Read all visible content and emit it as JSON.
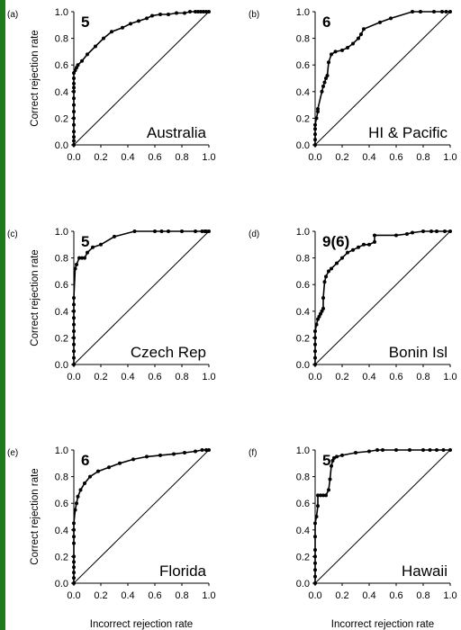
{
  "figure": {
    "x_axis_label": "Incorrect rejection rate",
    "y_axis_label": "Correct rejection rate",
    "colors": {
      "accent_bar": "#1f7a1f",
      "line": "#000000",
      "diagonal": "#000000"
    }
  },
  "chart_data": [
    {
      "type": "line",
      "panel_label": "(a)",
      "corner_number": "5",
      "region_label": "Australia",
      "xlim": [
        0,
        1
      ],
      "ylim": [
        0,
        1
      ],
      "x_ticks": [
        "0.0",
        "0.2",
        "0.4",
        "0.6",
        "0.8",
        "1.0"
      ],
      "y_ticks": [
        "0.0",
        "0.2",
        "0.4",
        "0.6",
        "0.8",
        "1.0"
      ],
      "x": [
        0,
        0,
        0,
        0,
        0,
        0,
        0,
        0,
        0,
        0,
        0,
        0,
        0,
        0,
        0.01,
        0.02,
        0.03,
        0.06,
        0.1,
        0.16,
        0.22,
        0.28,
        0.36,
        0.42,
        0.48,
        0.54,
        0.58,
        0.64,
        0.7,
        0.76,
        0.82,
        0.86,
        0.9,
        0.92,
        0.94,
        0.96,
        0.98,
        1.0
      ],
      "y": [
        0,
        0.03,
        0.06,
        0.1,
        0.15,
        0.2,
        0.25,
        0.3,
        0.35,
        0.4,
        0.43,
        0.46,
        0.5,
        0.54,
        0.56,
        0.58,
        0.6,
        0.63,
        0.68,
        0.74,
        0.8,
        0.85,
        0.88,
        0.91,
        0.93,
        0.95,
        0.97,
        0.98,
        0.98,
        0.99,
        0.99,
        1.0,
        1.0,
        1.0,
        1.0,
        1.0,
        1.0,
        1.0
      ]
    },
    {
      "type": "line",
      "panel_label": "(b)",
      "corner_number": "6",
      "region_label": "HI & Pacific",
      "xlim": [
        0,
        1
      ],
      "ylim": [
        0,
        1
      ],
      "x_ticks": [
        "0.0",
        "0.2",
        "0.4",
        "0.6",
        "0.8",
        "1.0"
      ],
      "y_ticks": [
        "0.0",
        "0.2",
        "0.4",
        "0.6",
        "0.8",
        "1.0"
      ],
      "x": [
        0,
        0,
        0,
        0,
        0,
        0.01,
        0.02,
        0.02,
        0.05,
        0.06,
        0.07,
        0.08,
        0.09,
        0.1,
        0.12,
        0.15,
        0.2,
        0.24,
        0.28,
        0.32,
        0.34,
        0.36,
        0.48,
        0.56,
        0.72,
        0.78,
        0.88,
        0.94,
        0.97,
        1.0
      ],
      "y": [
        0,
        0.04,
        0.08,
        0.12,
        0.15,
        0.2,
        0.25,
        0.27,
        0.4,
        0.44,
        0.47,
        0.5,
        0.52,
        0.62,
        0.68,
        0.7,
        0.71,
        0.73,
        0.76,
        0.8,
        0.83,
        0.87,
        0.92,
        0.95,
        1.0,
        1.0,
        1.0,
        1.0,
        1.0,
        1.0
      ]
    },
    {
      "type": "line",
      "panel_label": "(c)",
      "corner_number": "5",
      "region_label": "Czech Rep",
      "xlim": [
        0,
        1
      ],
      "ylim": [
        0,
        1
      ],
      "x_ticks": [
        "0.0",
        "0.2",
        "0.4",
        "0.6",
        "0.8",
        "1.0"
      ],
      "y_ticks": [
        "0.0",
        "0.2",
        "0.4",
        "0.6",
        "0.8",
        "1.0"
      ],
      "x": [
        0,
        0,
        0,
        0,
        0,
        0,
        0,
        0,
        0,
        0,
        0,
        0.01,
        0.02,
        0.04,
        0.06,
        0.08,
        0.1,
        0.14,
        0.2,
        0.3,
        0.45,
        0.6,
        0.65,
        0.7,
        0.8,
        0.9,
        0.95,
        0.97,
        0.98,
        1.0
      ],
      "y": [
        0,
        0.05,
        0.1,
        0.15,
        0.2,
        0.25,
        0.3,
        0.35,
        0.4,
        0.45,
        0.5,
        0.72,
        0.75,
        0.8,
        0.8,
        0.8,
        0.84,
        0.88,
        0.9,
        0.96,
        1.0,
        1.0,
        1.0,
        1.0,
        1.0,
        1.0,
        1.0,
        1.0,
        1.0,
        1.0
      ]
    },
    {
      "type": "line",
      "panel_label": "(d)",
      "corner_number": "9(6)",
      "region_label": "Bonin Isl",
      "xlim": [
        0,
        1
      ],
      "ylim": [
        0,
        1
      ],
      "x_ticks": [
        "0.0",
        "0.2",
        "0.4",
        "0.6",
        "0.8",
        "1.0"
      ],
      "y_ticks": [
        "0.0",
        "0.2",
        "0.4",
        "0.6",
        "0.8",
        "1.0"
      ],
      "x": [
        0,
        0,
        0,
        0,
        0,
        0,
        0.01,
        0.02,
        0.03,
        0.04,
        0.05,
        0.06,
        0.06,
        0.07,
        0.08,
        0.1,
        0.12,
        0.16,
        0.2,
        0.24,
        0.28,
        0.32,
        0.36,
        0.4,
        0.44,
        0.44,
        0.6,
        0.68,
        0.72,
        0.8,
        0.86,
        0.9,
        0.96,
        1.0
      ],
      "y": [
        0,
        0.05,
        0.1,
        0.15,
        0.2,
        0.25,
        0.3,
        0.34,
        0.36,
        0.38,
        0.4,
        0.42,
        0.5,
        0.62,
        0.66,
        0.7,
        0.72,
        0.76,
        0.8,
        0.84,
        0.86,
        0.88,
        0.9,
        0.9,
        0.92,
        0.97,
        0.97,
        0.98,
        0.99,
        1.0,
        1.0,
        1.0,
        1.0,
        1.0
      ]
    },
    {
      "type": "line",
      "panel_label": "(e)",
      "corner_number": "6",
      "region_label": "Florida",
      "xlim": [
        0,
        1
      ],
      "ylim": [
        0,
        1
      ],
      "x_ticks": [
        "0.0",
        "0.2",
        "0.4",
        "0.6",
        "0.8",
        "1.0"
      ],
      "y_ticks": [
        "0.0",
        "0.2",
        "0.4",
        "0.6",
        "0.8",
        "1.0"
      ],
      "x": [
        0,
        0,
        0,
        0,
        0,
        0,
        0,
        0,
        0,
        0,
        0.01,
        0.02,
        0.03,
        0.05,
        0.08,
        0.12,
        0.18,
        0.26,
        0.34,
        0.44,
        0.54,
        0.64,
        0.74,
        0.82,
        0.9,
        0.95,
        0.98,
        1.0
      ],
      "y": [
        0,
        0.04,
        0.08,
        0.12,
        0.16,
        0.2,
        0.3,
        0.35,
        0.4,
        0.45,
        0.55,
        0.6,
        0.65,
        0.7,
        0.75,
        0.8,
        0.84,
        0.87,
        0.9,
        0.93,
        0.95,
        0.96,
        0.97,
        0.98,
        0.99,
        1.0,
        1.0,
        1.0
      ]
    },
    {
      "type": "line",
      "panel_label": "(f)",
      "corner_number": "5",
      "region_label": "Hawaii",
      "xlim": [
        0,
        1
      ],
      "ylim": [
        0,
        1
      ],
      "x_ticks": [
        "0.0",
        "0.2",
        "0.4",
        "0.6",
        "0.8",
        "1.0"
      ],
      "y_ticks": [
        "0.0",
        "0.2",
        "0.4",
        "0.6",
        "0.8",
        "1.0"
      ],
      "x": [
        0,
        0,
        0,
        0,
        0,
        0,
        0,
        0,
        0.01,
        0.02,
        0.02,
        0.04,
        0.06,
        0.08,
        0.1,
        0.11,
        0.12,
        0.13,
        0.14,
        0.16,
        0.2,
        0.3,
        0.4,
        0.46,
        0.5,
        0.6,
        0.7,
        0.8,
        0.85,
        0.9,
        0.95,
        1.0
      ],
      "y": [
        0,
        0.05,
        0.1,
        0.15,
        0.2,
        0.25,
        0.35,
        0.45,
        0.5,
        0.58,
        0.66,
        0.66,
        0.66,
        0.66,
        0.7,
        0.78,
        0.88,
        0.92,
        0.94,
        0.95,
        0.96,
        0.98,
        0.99,
        1.0,
        1.0,
        1.0,
        1.0,
        1.0,
        1.0,
        1.0,
        1.0,
        1.0
      ]
    }
  ]
}
